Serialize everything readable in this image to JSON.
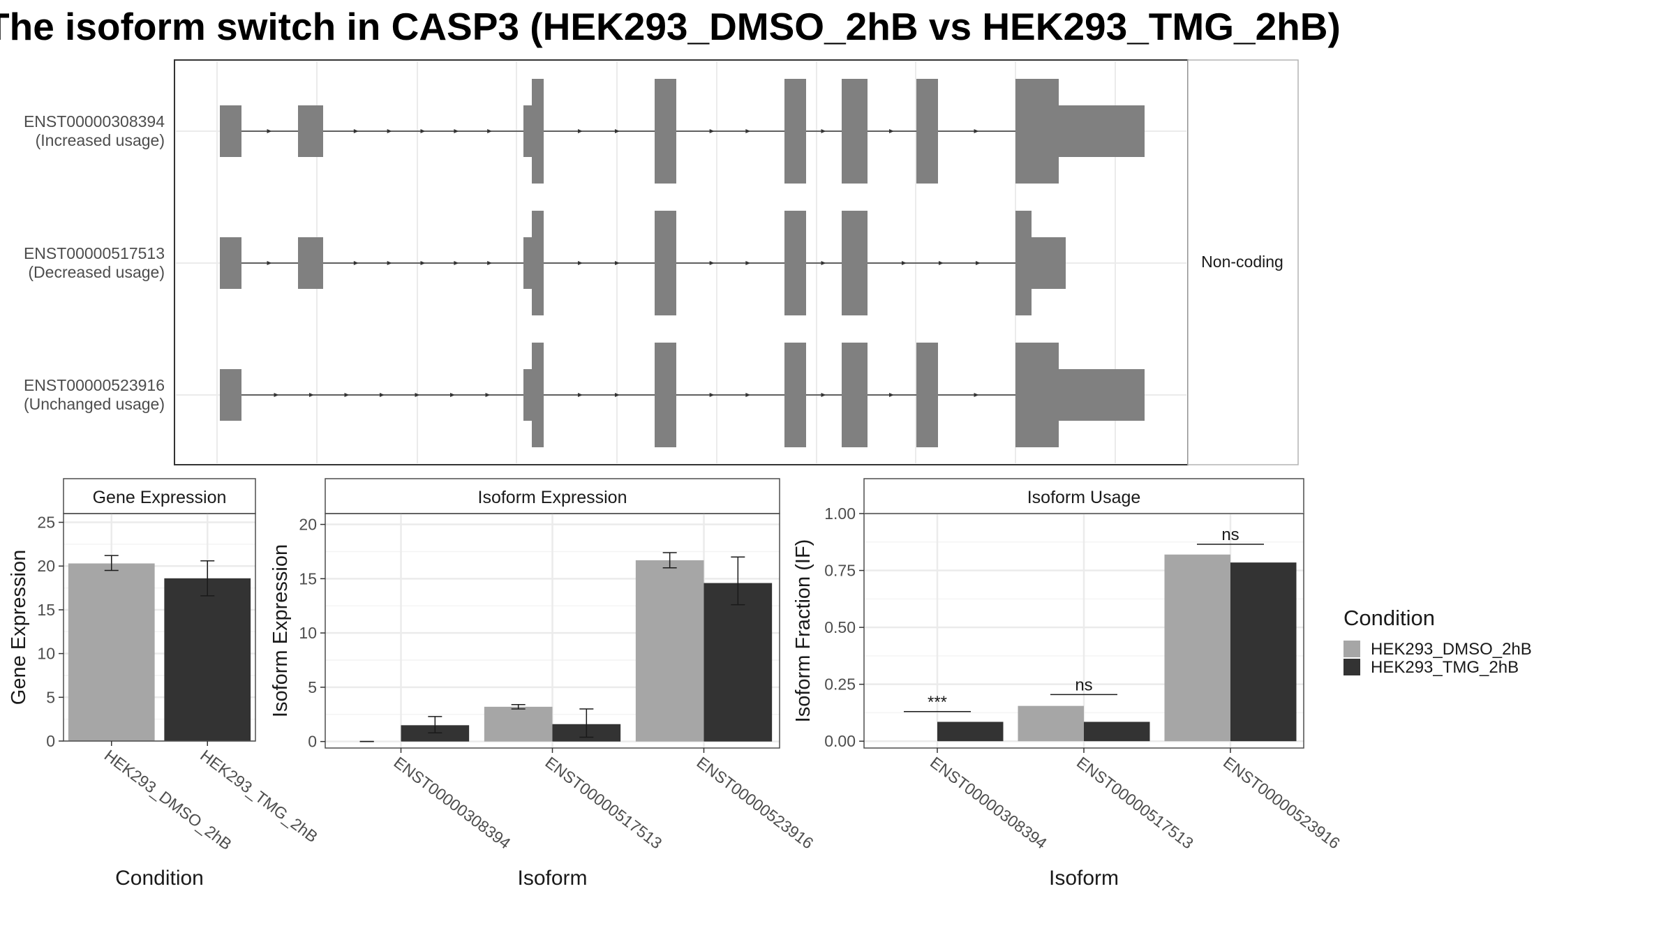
{
  "title": "The isoform switch in CASP3 (HEK293_DMSO_2hB vs HEK293_TMG_2hB)",
  "colors": {
    "dmso": "#a6a6a6",
    "tmg": "#333333",
    "exon": "#808080",
    "grid": "#ebebeb",
    "strip": "#ffffff"
  },
  "structure": {
    "strip_label": "Non-coding",
    "isoforms": [
      {
        "id": "ENST00000308394",
        "usage": "(Increased usage)",
        "coding": true
      },
      {
        "id": "ENST00000517513",
        "usage": "(Decreased usage)",
        "coding": false
      },
      {
        "id": "ENST00000523916",
        "usage": "(Unchanged usage)",
        "coding": true
      }
    ]
  },
  "legend": {
    "title": "Condition",
    "items": [
      {
        "label": "HEK293_DMSO_2hB",
        "color": "#a6a6a6"
      },
      {
        "label": "HEK293_TMG_2hB",
        "color": "#333333"
      }
    ]
  },
  "chart_data": [
    {
      "type": "bar",
      "title": "Gene Expression",
      "xlabel": "Condition",
      "ylabel": "Gene Expression",
      "ylim": [
        0,
        26
      ],
      "yticks": [
        0,
        5,
        10,
        15,
        20,
        25
      ],
      "categories": [
        "HEK293_DMSO_2hB",
        "HEK293_TMG_2hB"
      ],
      "values": [
        20.3,
        18.6
      ],
      "errors": [
        [
          19.5,
          21.2
        ],
        [
          16.6,
          20.6
        ]
      ]
    },
    {
      "type": "bar",
      "title": "Isoform Expression",
      "xlabel": "Isoform",
      "ylabel": "Isoform Expression",
      "ylim": [
        -0.6,
        21
      ],
      "yticks": [
        0,
        5,
        10,
        15,
        20
      ],
      "categories": [
        "ENST00000308394",
        "ENST00000517513",
        "ENST00000523916"
      ],
      "series": [
        {
          "name": "HEK293_DMSO_2hB",
          "values": [
            0,
            3.2,
            16.7
          ],
          "errors": [
            [
              0,
              0
            ],
            [
              3.0,
              3.4
            ],
            [
              16.0,
              17.4
            ]
          ]
        },
        {
          "name": "HEK293_TMG_2hB",
          "values": [
            1.5,
            1.6,
            14.6
          ],
          "errors": [
            [
              0.8,
              2.3
            ],
            [
              0.4,
              3.0
            ],
            [
              12.6,
              17.0
            ]
          ]
        }
      ]
    },
    {
      "type": "bar",
      "title": "Isoform Usage",
      "xlabel": "Isoform",
      "ylabel": "Isoform Fraction (IF)",
      "ylim": [
        -0.03,
        1.0
      ],
      "yticks": [
        "0.00",
        "0.25",
        "0.50",
        "0.75",
        "1.00"
      ],
      "categories": [
        "ENST00000308394",
        "ENST00000517513",
        "ENST00000523916"
      ],
      "series": [
        {
          "name": "HEK293_DMSO_2hB",
          "values": [
            0.0,
            0.155,
            0.82
          ]
        },
        {
          "name": "HEK293_TMG_2hB",
          "values": [
            0.085,
            0.085,
            0.785
          ]
        }
      ],
      "significance": [
        "***",
        "ns",
        "ns"
      ],
      "significance_y": [
        0.13,
        0.205,
        0.865
      ]
    }
  ]
}
